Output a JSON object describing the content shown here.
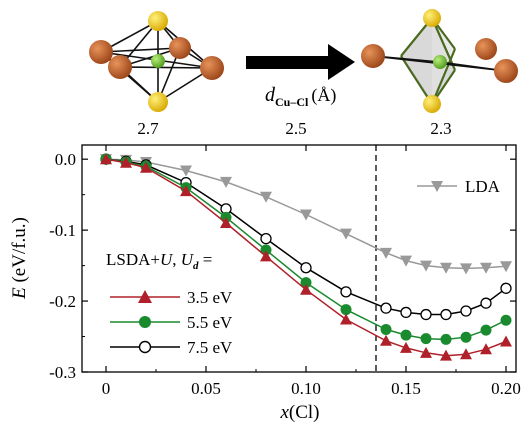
{
  "top": {
    "arrow_label_d": "d",
    "arrow_label_sub": "Cu–Cl",
    "arrow_label_unit": "(Å)",
    "scale_ticks": [
      "2.7",
      "2.5",
      "2.3"
    ]
  },
  "chart_data": {
    "type": "line",
    "xlabel": "x(Cl)",
    "ylabel": "E (eV/f.u.)",
    "xlim": [
      -0.012,
      0.205
    ],
    "ylim": [
      -0.3,
      0.02
    ],
    "xticks": [
      0,
      0.05,
      0.1,
      0.15,
      0.2
    ],
    "xtick_labels": [
      "0",
      "0.05",
      "0.10",
      "0.15",
      "0.20"
    ],
    "yticks": [
      0.0,
      -0.1,
      -0.2,
      -0.3
    ],
    "ytick_labels": [
      "0.0",
      "-0.1",
      "-0.2",
      "-0.3"
    ],
    "vline_x": 0.135,
    "legend_title": "LSDA+U, U_d =",
    "series": [
      {
        "name": "LDA",
        "color": "#999999",
        "marker": "triangle-down",
        "x": [
          0,
          0.01,
          0.02,
          0.04,
          0.06,
          0.08,
          0.1,
          0.12,
          0.14,
          0.15,
          0.16,
          0.17,
          0.18,
          0.19,
          0.2
        ],
        "y": [
          0.0,
          -0.001,
          -0.004,
          -0.016,
          -0.032,
          -0.053,
          -0.078,
          -0.105,
          -0.132,
          -0.143,
          -0.15,
          -0.153,
          -0.154,
          -0.153,
          -0.151
        ]
      },
      {
        "name": "7.5 eV",
        "color": "#000000",
        "marker": "circle-open",
        "x": [
          0,
          0.01,
          0.02,
          0.04,
          0.06,
          0.08,
          0.1,
          0.12,
          0.14,
          0.15,
          0.16,
          0.17,
          0.18,
          0.19,
          0.2
        ],
        "y": [
          0.0,
          -0.003,
          -0.008,
          -0.033,
          -0.07,
          -0.112,
          -0.153,
          -0.187,
          -0.21,
          -0.216,
          -0.219,
          -0.219,
          -0.214,
          -0.203,
          -0.182
        ]
      },
      {
        "name": "5.5 eV",
        "color": "#1a8a2e",
        "marker": "circle-filled",
        "x": [
          0,
          0.01,
          0.02,
          0.04,
          0.06,
          0.08,
          0.1,
          0.12,
          0.14,
          0.15,
          0.16,
          0.17,
          0.18,
          0.19,
          0.2
        ],
        "y": [
          0.0,
          -0.004,
          -0.01,
          -0.04,
          -0.082,
          -0.128,
          -0.174,
          -0.212,
          -0.24,
          -0.248,
          -0.253,
          -0.254,
          -0.251,
          -0.241,
          -0.227
        ]
      },
      {
        "name": "3.5 eV",
        "color": "#b0202a",
        "marker": "triangle-up",
        "x": [
          0,
          0.01,
          0.02,
          0.04,
          0.06,
          0.08,
          0.1,
          0.12,
          0.14,
          0.15,
          0.16,
          0.17,
          0.18,
          0.19,
          0.2
        ],
        "y": [
          0.0,
          -0.005,
          -0.012,
          -0.045,
          -0.09,
          -0.137,
          -0.184,
          -0.226,
          -0.256,
          -0.266,
          -0.273,
          -0.277,
          -0.275,
          -0.268,
          -0.257
        ]
      }
    ]
  },
  "colors": {
    "cu": "#7cc23f",
    "cl_orange": "#c1602a",
    "ap_yellow": "#f2c200",
    "bond_green": "#4a6a1f"
  }
}
